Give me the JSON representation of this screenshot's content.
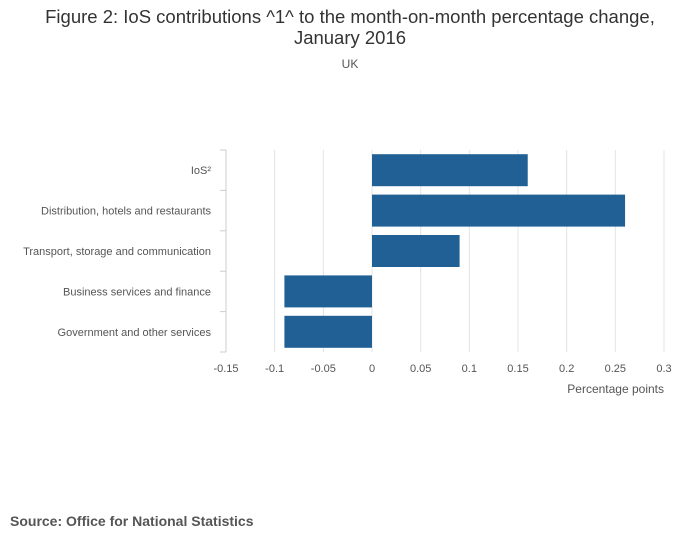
{
  "title_line1": "Figure 2: IoS contributions ^1^ to the month-on-month percentage change,",
  "title_line2": "January 2016",
  "subtitle": "UK",
  "source": "Source: Office for National Statistics",
  "chart_data": {
    "type": "bar",
    "orientation": "horizontal",
    "categories": [
      "IoS²",
      "Distribution, hotels and restaurants",
      "Transport, storage and communication",
      "Business services and finance",
      "Government and other services"
    ],
    "values": [
      0.16,
      0.26,
      0.09,
      -0.09,
      -0.09
    ],
    "xlabel": "Percentage points",
    "xlim": [
      -0.15,
      0.3
    ],
    "xticks": [
      "-0.15",
      "-0.1",
      "-0.05",
      "0",
      "0.05",
      "0.1",
      "0.15",
      "0.2",
      "0.25",
      "0.3"
    ],
    "bar_color": "#206095",
    "grid": true
  }
}
